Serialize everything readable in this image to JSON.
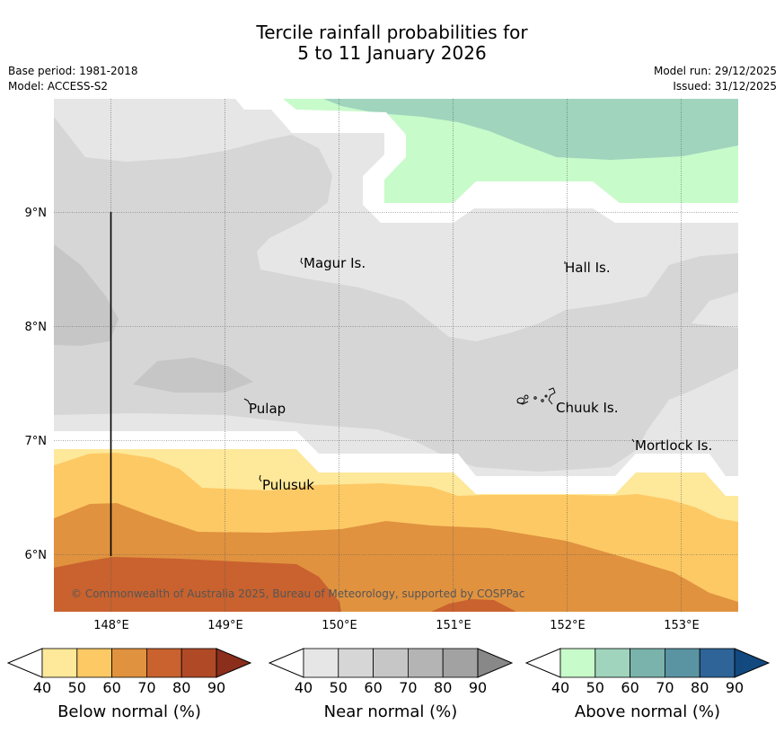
{
  "title": {
    "line1": "Tercile rainfall probabilities for",
    "line2": "5 to 11 January 2026"
  },
  "meta": {
    "base_period": "Base period: 1981-2018",
    "model": "Model: ACCESS-S2",
    "model_run": "Model run: 29/12/2025",
    "issued": "Issued: 31/12/2025"
  },
  "map": {
    "lat_labels": [
      "9°N",
      "8°N",
      "7°N",
      "6°N"
    ],
    "lon_labels": [
      "148°E",
      "149°E",
      "150°E",
      "151°E",
      "152°E",
      "153°E"
    ],
    "places": {
      "magur": "Magur Is.",
      "hall": "Hall Is.",
      "pulap": "Pulap",
      "chuuk": "Chuuk Is.",
      "mortlock": "Mortlock Is.",
      "pulusuk": "Pulusuk"
    },
    "copyright": "© Commonwealth of Australia 2025, Bureau of Meteorology, supported by COSPPac"
  },
  "colorbars": {
    "below": {
      "title": "Below normal (%)",
      "ticks": [
        "40",
        "50",
        "60",
        "70",
        "80",
        "90"
      ],
      "colors": [
        "#fee899",
        "#fdc965",
        "#e0923f",
        "#c9622e",
        "#b04a26",
        "#8b2e1c"
      ]
    },
    "near": {
      "title": "Near normal (%)",
      "ticks": [
        "40",
        "50",
        "60",
        "70",
        "80",
        "90"
      ],
      "colors": [
        "#e6e6e6",
        "#d6d6d6",
        "#c6c6c6",
        "#b4b4b4",
        "#a2a2a2",
        "#888888"
      ]
    },
    "above": {
      "title": "Above normal (%)",
      "ticks": [
        "40",
        "50",
        "60",
        "70",
        "80",
        "90"
      ],
      "colors": [
        "#c8fbca",
        "#a0d4bd",
        "#7ab3ab",
        "#5a94a3",
        "#2e6498",
        "#124a80"
      ]
    }
  }
}
